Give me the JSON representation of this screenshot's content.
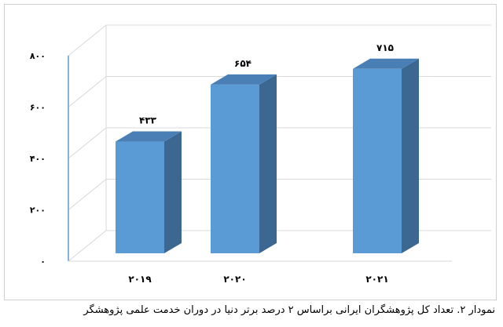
{
  "chart_data": {
    "type": "bar",
    "style": "3d-column",
    "categories": [
      "۲۰۱۹",
      "۲۰۲۰",
      "۲۰۲۱"
    ],
    "values": [
      433,
      654,
      715
    ],
    "data_labels": [
      "۴۳۳",
      "۶۵۴",
      "۷۱۵"
    ],
    "yticks": [
      0,
      200,
      400,
      600,
      800
    ],
    "ytick_labels": [
      "۰",
      "۲۰۰",
      "۴۰۰",
      "۶۰۰",
      "۸۰۰"
    ],
    "ylim": [
      0,
      800
    ],
    "grid": true,
    "colors": {
      "front": "#5b9bd5",
      "side": "#3b6790",
      "top": "#4a7fb5",
      "grid": "#d9d9d9",
      "axis": "#5b9bd5"
    }
  },
  "caption": "نمودار ۲. تعداد کل پژوهشگران ایرانی براساس ۲ درصد برتر دنیا در دوران خدمت علمی پژوهشگر"
}
